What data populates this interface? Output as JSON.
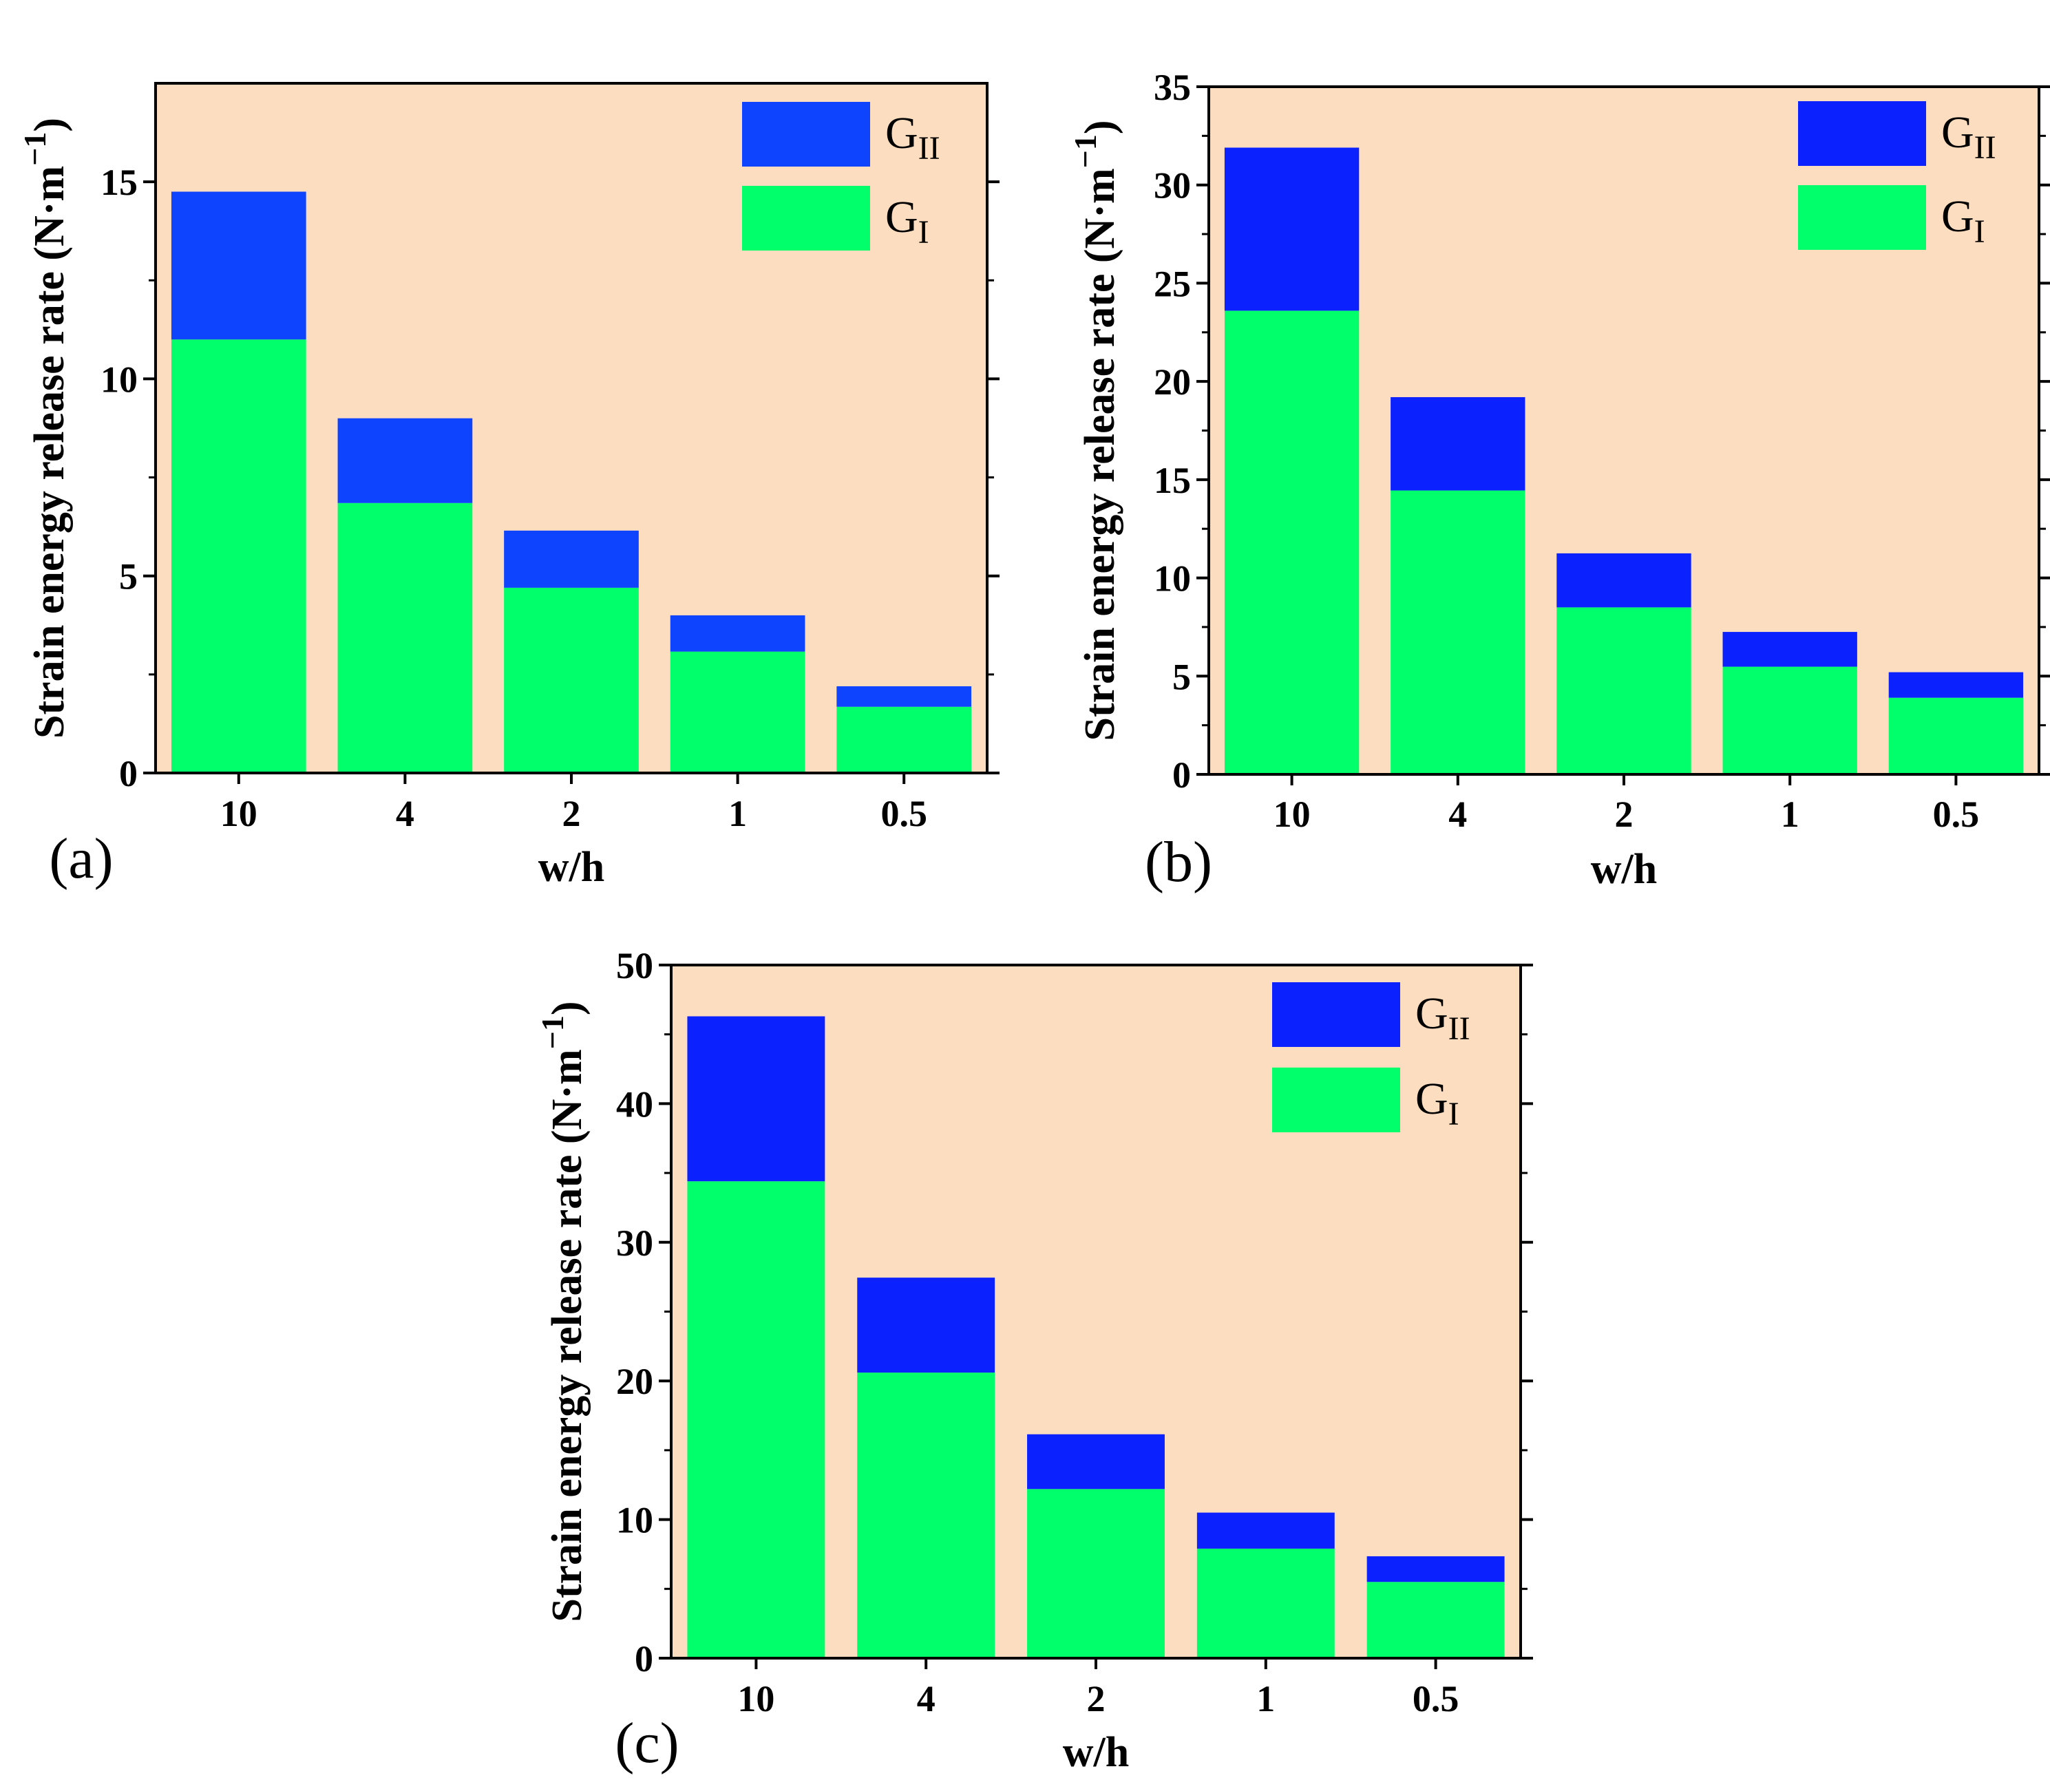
{
  "colors": {
    "plot_background": "#FDDDBF",
    "series_g1": "#00FF6A",
    "series_g2": "#0B22FF",
    "series_g2_panel_a": "#0F44FF",
    "axis": "#000000"
  },
  "chart_data": [
    {
      "type": "bar",
      "stacked": true,
      "panel_label": "(a)",
      "categories": [
        "10",
        "4",
        "2",
        "1",
        "0.5"
      ],
      "xlabel": "w/h",
      "ylabel": "Strain energy release rate",
      "yunit": "(N·m",
      "yunit_exp": "−1",
      "yunit_close": ")",
      "ylim": [
        0,
        17.5
      ],
      "yticks": [
        "0",
        "5",
        "10",
        "15"
      ],
      "ytick_values": [
        0,
        5,
        10,
        15
      ],
      "minor_step": 2.5,
      "series": [
        {
          "name": "G_I",
          "label_base": "G",
          "label_sub": "I",
          "values": [
            11.0,
            6.85,
            4.7,
            3.08,
            1.68
          ]
        },
        {
          "name": "G_II",
          "label_base": "G",
          "label_sub": "II",
          "values": [
            3.75,
            2.15,
            1.45,
            0.92,
            0.52
          ]
        }
      ],
      "legend_position": "top-right"
    },
    {
      "type": "bar",
      "stacked": true,
      "panel_label": "(b)",
      "categories": [
        "10",
        "4",
        "2",
        "1",
        "0.5"
      ],
      "xlabel": "w/h",
      "ylabel": "Strain energy release rate",
      "yunit": "(N·m",
      "yunit_exp": "−1",
      "yunit_close": ")",
      "ylim": [
        0,
        35
      ],
      "yticks": [
        "0",
        "5",
        "10",
        "15",
        "20",
        "25",
        "30",
        "35"
      ],
      "ytick_values": [
        0,
        5,
        10,
        15,
        20,
        25,
        30,
        35
      ],
      "minor_step": 2.5,
      "series": [
        {
          "name": "G_I",
          "label_base": "G",
          "label_sub": "I",
          "values": [
            23.6,
            14.45,
            8.5,
            5.48,
            3.9
          ]
        },
        {
          "name": "G_II",
          "label_base": "G",
          "label_sub": "II",
          "values": [
            8.3,
            4.75,
            2.75,
            1.77,
            1.3
          ]
        }
      ],
      "legend_position": "top-right"
    },
    {
      "type": "bar",
      "stacked": true,
      "panel_label": "(c)",
      "categories": [
        "10",
        "4",
        "2",
        "1",
        "0.5"
      ],
      "xlabel": "w/h",
      "ylabel": "Strain energy release rate",
      "yunit": "(N·m",
      "yunit_exp": "−1",
      "yunit_close": ")",
      "ylim": [
        0,
        50
      ],
      "yticks": [
        "0",
        "10",
        "20",
        "30",
        "40",
        "50"
      ],
      "ytick_values": [
        0,
        10,
        20,
        30,
        40,
        50
      ],
      "minor_step": 5,
      "series": [
        {
          "name": "G_I",
          "label_base": "G",
          "label_sub": "I",
          "values": [
            34.4,
            20.6,
            12.2,
            7.9,
            5.5
          ]
        },
        {
          "name": "G_II",
          "label_base": "G",
          "label_sub": "II",
          "values": [
            11.9,
            6.85,
            3.95,
            2.6,
            1.85
          ]
        }
      ],
      "legend_position": "top-right"
    }
  ]
}
